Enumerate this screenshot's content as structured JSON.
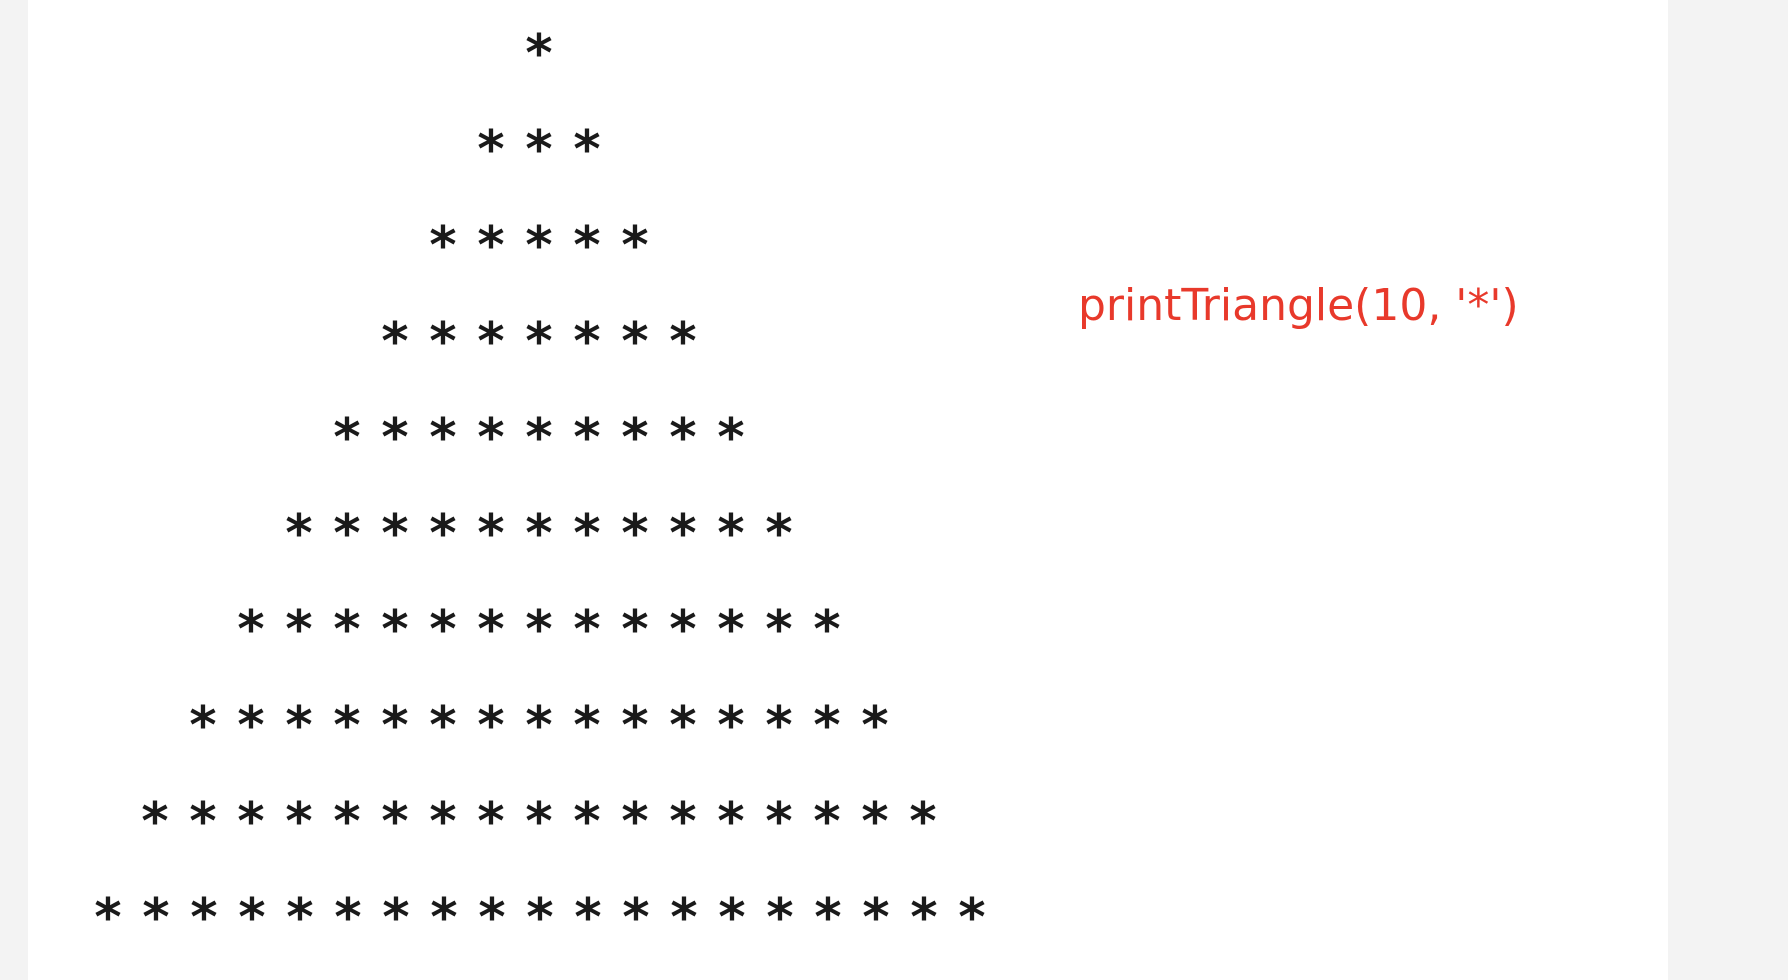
{
  "triangle": {
    "rows": 10,
    "char": "*"
  },
  "label": {
    "text": "printTriangle(10, '*')",
    "color": "#e8392b"
  }
}
